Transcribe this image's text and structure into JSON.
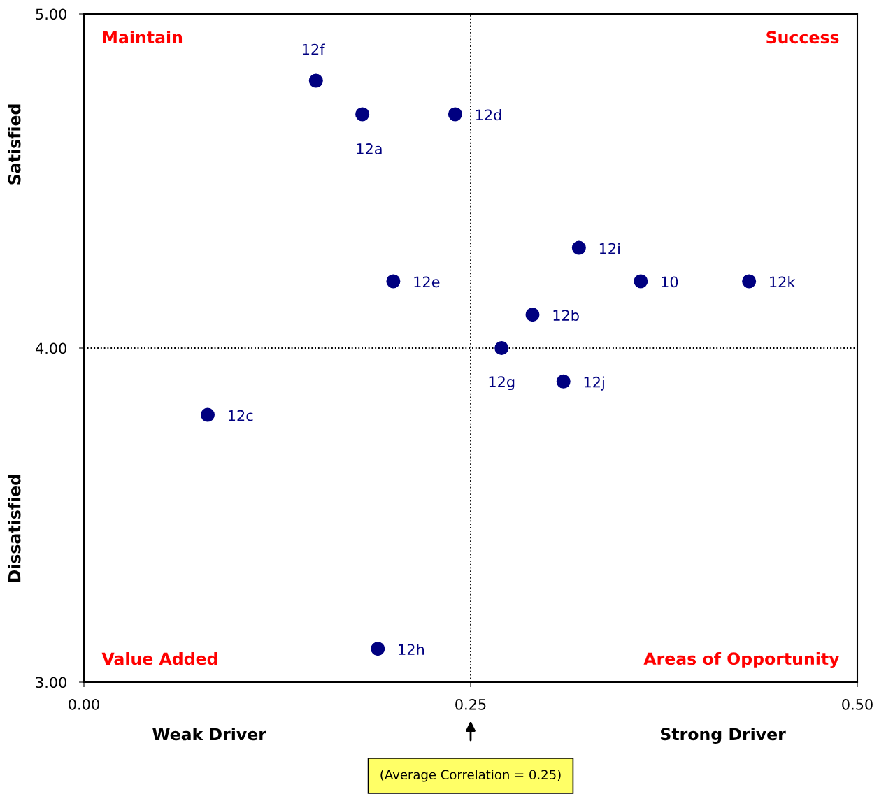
{
  "chart_data": {
    "type": "scatter",
    "xlim": [
      0,
      0.5
    ],
    "ylim": [
      3,
      5
    ],
    "xticks": [
      {
        "value": 0,
        "label": "0.00"
      },
      {
        "value": 0.25,
        "label": "0.25"
      },
      {
        "value": 0.5,
        "label": "0.50"
      }
    ],
    "yticks": [
      {
        "value": 3,
        "label": "3.00"
      },
      {
        "value": 4,
        "label": "4.00"
      },
      {
        "value": 5,
        "label": "5.00"
      }
    ],
    "x": [
      0.15,
      0.18,
      0.24,
      0.32,
      0.2,
      0.36,
      0.43,
      0.29,
      0.27,
      0.31,
      0.08,
      0.19
    ],
    "values": [
      4.8,
      4.7,
      4.7,
      4.3,
      4.2,
      4.2,
      4.2,
      4.1,
      4.0,
      3.9,
      3.8,
      3.1
    ],
    "color": "#000080",
    "marker": "circle",
    "grid": false,
    "ref_lines": [
      {
        "axis": "x",
        "value": 0.25,
        "label": "(Average Correlation = 0.25)",
        "line_style": "dotted"
      },
      {
        "axis": "y",
        "value": 4,
        "line_style": "dotted"
      }
    ],
    "annotations": [
      "Maintain",
      "Success",
      "Value Added",
      "Areas of Opportunity",
      "Weak Driver",
      "Strong Driver",
      "Satisfied",
      "Dissatisfied",
      {
        "text": "12f",
        "x": 0.15,
        "y": 4.8
      },
      {
        "text": "12a",
        "x": 0.18,
        "y": 4.7
      },
      {
        "text": "12d",
        "x": 0.24,
        "y": 4.7
      },
      {
        "text": "12i",
        "x": 0.32,
        "y": 4.3
      },
      {
        "text": "12e",
        "x": 0.2,
        "y": 4.2
      },
      {
        "text": "10",
        "x": 0.36,
        "y": 4.2
      },
      {
        "text": "12k",
        "x": 0.43,
        "y": 4.2
      },
      {
        "text": "12b",
        "x": 0.29,
        "y": 4.1
      },
      {
        "text": "12g",
        "x": 0.27,
        "y": 4.0
      },
      {
        "text": "12j",
        "x": 0.31,
        "y": 3.9
      },
      {
        "text": "12c",
        "x": 0.08,
        "y": 3.8
      },
      {
        "text": "12h",
        "x": 0.19,
        "y": 3.1
      }
    ]
  }
}
